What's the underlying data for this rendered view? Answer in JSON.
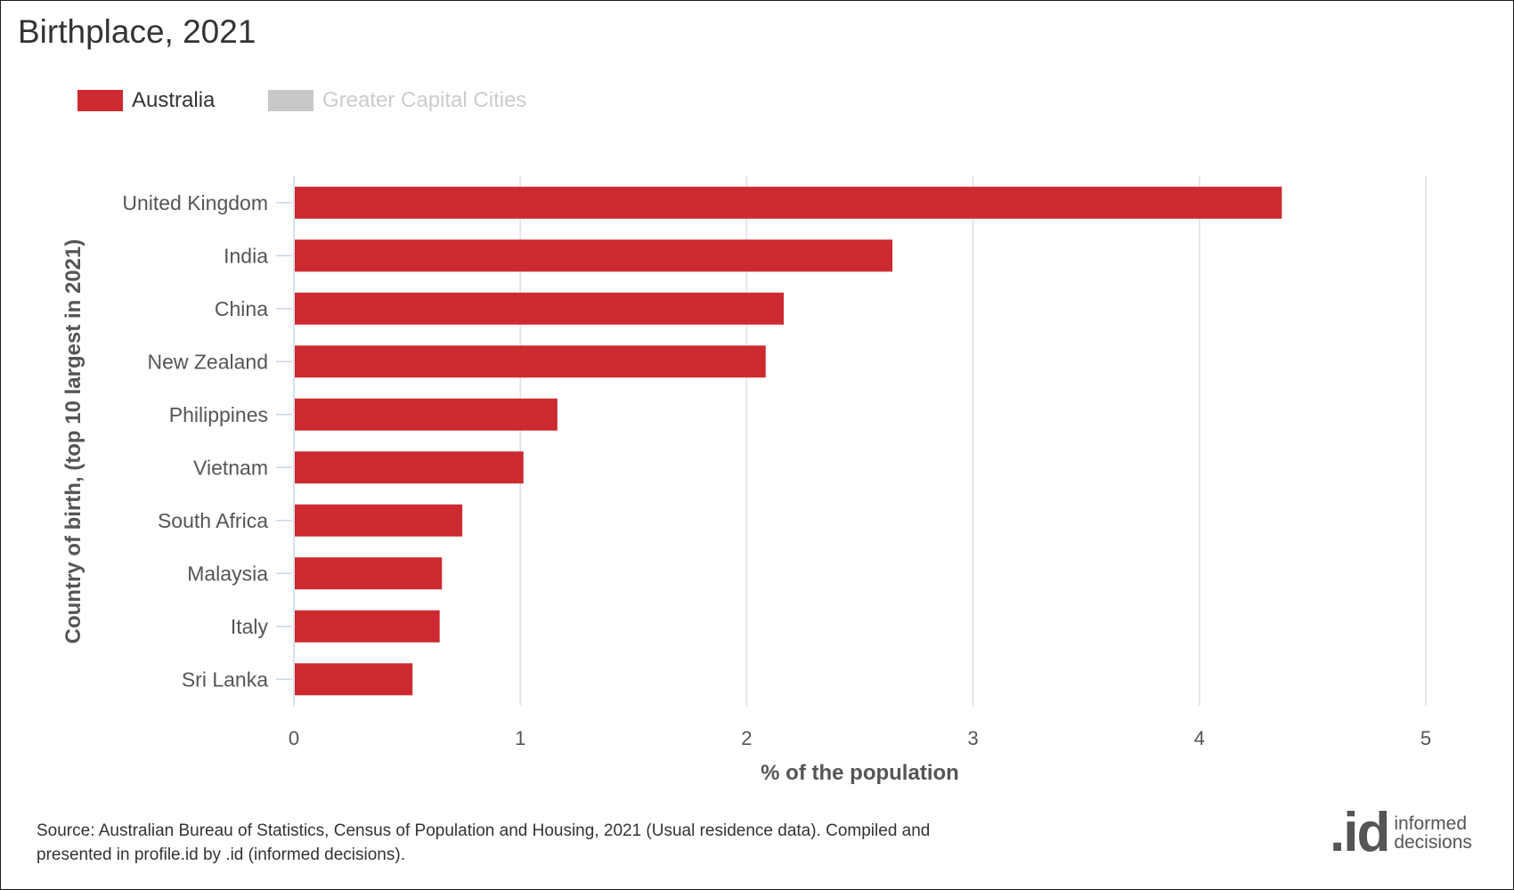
{
  "title": "Birthplace, 2021",
  "legend": [
    {
      "label": "Australia",
      "color": "#cc2a30",
      "active": true
    },
    {
      "label": "Greater Capital Cities",
      "color": "#c8c8c8",
      "active": false
    }
  ],
  "chart_data": {
    "type": "bar",
    "orientation": "horizontal",
    "title": "Birthplace, 2021",
    "xlabel": "% of the population",
    "ylabel": "Country of birth, (top 10 largest in 2021)",
    "xlim": [
      0,
      5
    ],
    "xticks": [
      "0",
      "1",
      "2",
      "3",
      "4",
      "5"
    ],
    "categories": [
      "United Kingdom",
      "India",
      "China",
      "New Zealand",
      "Philippines",
      "Vietnam",
      "South Africa",
      "Malaysia",
      "Italy",
      "Sri Lanka"
    ],
    "series": [
      {
        "name": "Australia",
        "color": "#cc2a30",
        "values": [
          4.36,
          2.64,
          2.16,
          2.08,
          1.16,
          1.01,
          0.74,
          0.65,
          0.64,
          0.52
        ]
      }
    ],
    "grid": true,
    "legend_position": "top-left"
  },
  "footer": {
    "source_line1": "Source: Australian Bureau of Statistics, Census of Population and Housing, 2021 (Usual residence data). Compiled and",
    "source_line2": "presented in profile.id by .id (informed decisions)."
  },
  "logo": {
    "mark": ".id",
    "line1": "informed",
    "line2": "decisions"
  }
}
